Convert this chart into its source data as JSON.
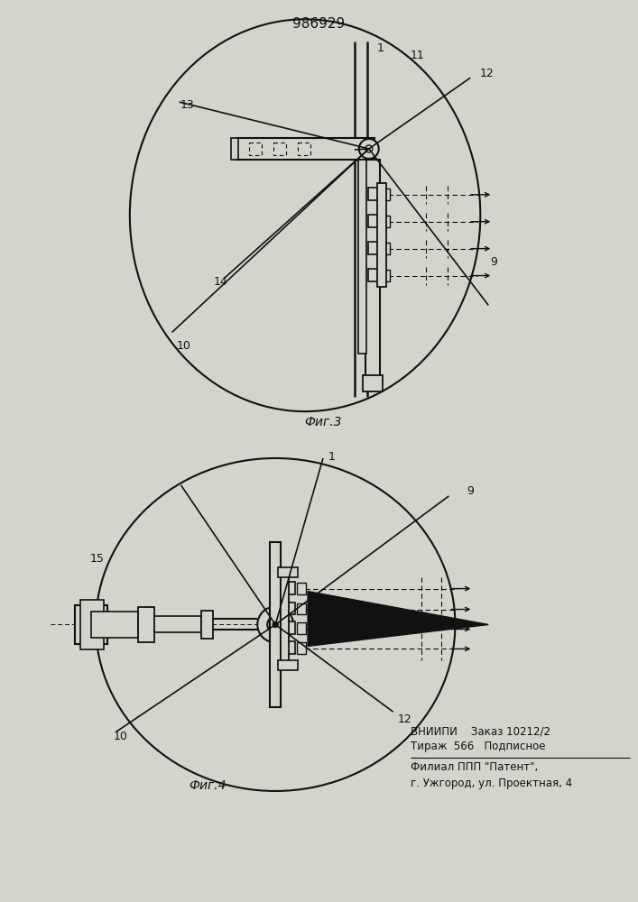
{
  "title": "986929",
  "fig3_caption": "Фиг.3",
  "fig4_caption": "Фиг.4",
  "vniipi_line1": "ВНИИПИ    Заказ 10212/2",
  "vniipi_line2": "Тираж  566   Подписное",
  "vniipi_line3": "Филиал ППП \"Патент\",",
  "vniipi_line4": "г. Ужгород, ул. Проектная, 4",
  "bg_color": "#d4d4cc",
  "line_color": "#111111"
}
